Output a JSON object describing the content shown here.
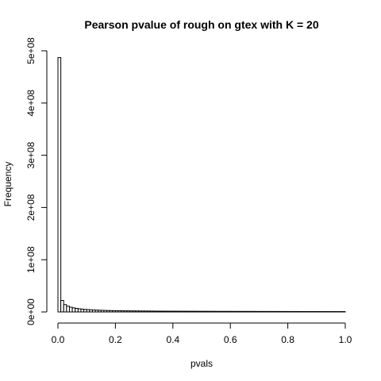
{
  "chart_data": {
    "type": "bar",
    "title": "Pearson pvalue of rough on gtex with K = 20",
    "xlabel": "pvals",
    "ylabel": "Frequency",
    "xlim": [
      0,
      1
    ],
    "ylim": [
      0,
      500000000
    ],
    "bin_width": 0.01,
    "x_ticks": [
      0,
      0.2,
      0.4,
      0.6,
      0.8,
      1
    ],
    "x_tick_labels": [
      "0.0",
      "0.2",
      "0.4",
      "0.6",
      "0.8",
      "1.0"
    ],
    "y_ticks": [
      0,
      100000000,
      200000000,
      300000000,
      400000000,
      500000000
    ],
    "y_tick_labels": [
      "0e+00",
      "1e+08",
      "2e+08",
      "3e+08",
      "4e+08",
      "5e+08"
    ],
    "bins_start": [
      0.0,
      0.01,
      0.02,
      0.03,
      0.04,
      0.05,
      0.06,
      0.07,
      0.08,
      0.09,
      0.1,
      0.11,
      0.12,
      0.13,
      0.14,
      0.15,
      0.16,
      0.17,
      0.18,
      0.19,
      0.2,
      0.21,
      0.22,
      0.23,
      0.24,
      0.25,
      0.26,
      0.27,
      0.28,
      0.29,
      0.3,
      0.31,
      0.32,
      0.33,
      0.34,
      0.35,
      0.36,
      0.37,
      0.38,
      0.39,
      0.4,
      0.41,
      0.42,
      0.43,
      0.44,
      0.45,
      0.46,
      0.47,
      0.48,
      0.49,
      0.5,
      0.51,
      0.52,
      0.53,
      0.54,
      0.55,
      0.56,
      0.57,
      0.58,
      0.59,
      0.6,
      0.61,
      0.62,
      0.63,
      0.64,
      0.65,
      0.66,
      0.67,
      0.68,
      0.69,
      0.7,
      0.71,
      0.72,
      0.73,
      0.74,
      0.75,
      0.76,
      0.77,
      0.78,
      0.79,
      0.8,
      0.81,
      0.82,
      0.83,
      0.84,
      0.85,
      0.86,
      0.87,
      0.88,
      0.89,
      0.9,
      0.91,
      0.92,
      0.93,
      0.94,
      0.95,
      0.96,
      0.97,
      0.98,
      0.99
    ],
    "values": [
      487000000,
      22000000,
      14000000,
      11000000,
      9000000,
      7800000,
      6800000,
      6000000,
      5400000,
      4900000,
      4500000,
      4100000,
      3800000,
      3500000,
      3300000,
      3100000,
      2900000,
      2750000,
      2600000,
      2500000,
      2400000,
      2300000,
      2200000,
      2100000,
      2050000,
      2000000,
      1950000,
      1900000,
      1850000,
      1800000,
      1750000,
      1700000,
      1650000,
      1600000,
      1570000,
      1540000,
      1510000,
      1480000,
      1450000,
      1420000,
      1400000,
      1380000,
      1360000,
      1340000,
      1320000,
      1300000,
      1280000,
      1260000,
      1240000,
      1220000,
      1200000,
      1180000,
      1160000,
      1140000,
      1120000,
      1100000,
      1090000,
      1080000,
      1070000,
      1060000,
      1050000,
      1040000,
      1030000,
      1020000,
      1010000,
      1000000,
      990000,
      980000,
      970000,
      960000,
      950000,
      940000,
      930000,
      920000,
      910000,
      900000,
      890000,
      880000,
      870000,
      860000,
      850000,
      840000,
      830000,
      820000,
      810000,
      800000,
      790000,
      780000,
      770000,
      760000,
      750000,
      740000,
      730000,
      720000,
      710000,
      700000,
      690000,
      680000,
      670000,
      660000
    ]
  }
}
